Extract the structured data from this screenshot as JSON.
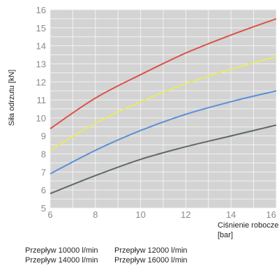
{
  "chart_data": {
    "type": "line",
    "title": "",
    "xlabel": "Ciśnienie robocze [bar]",
    "ylabel": "Siła odrzutu [kN]",
    "xlim": [
      6,
      16
    ],
    "ylim": [
      5,
      16
    ],
    "xticks": [
      6,
      8,
      10,
      12,
      14,
      16
    ],
    "yticks": [
      5,
      6,
      7,
      8,
      9,
      10,
      11,
      12,
      13,
      14,
      15,
      16
    ],
    "grid": true,
    "legend_position": "bottom",
    "x": [
      6,
      8,
      10,
      12,
      14,
      16
    ],
    "series": [
      {
        "name": "Przepływ 10000 l/min",
        "color": "#5e6b5e",
        "values": [
          5.8,
          6.8,
          7.7,
          8.4,
          9.0,
          9.6
        ]
      },
      {
        "name": "Przepływ 12000 l/min",
        "color": "#5b8fd8",
        "values": [
          6.9,
          8.2,
          9.3,
          10.2,
          10.9,
          11.5
        ]
      },
      {
        "name": "Przepływ 14000 l/min",
        "color": "#e8e86a",
        "values": [
          8.2,
          9.7,
          10.9,
          11.9,
          12.7,
          13.4
        ]
      },
      {
        "name": "Przepływ 16000 l/min",
        "color": "#d9534a",
        "values": [
          9.4,
          11.1,
          12.4,
          13.6,
          14.6,
          15.5
        ]
      }
    ]
  }
}
